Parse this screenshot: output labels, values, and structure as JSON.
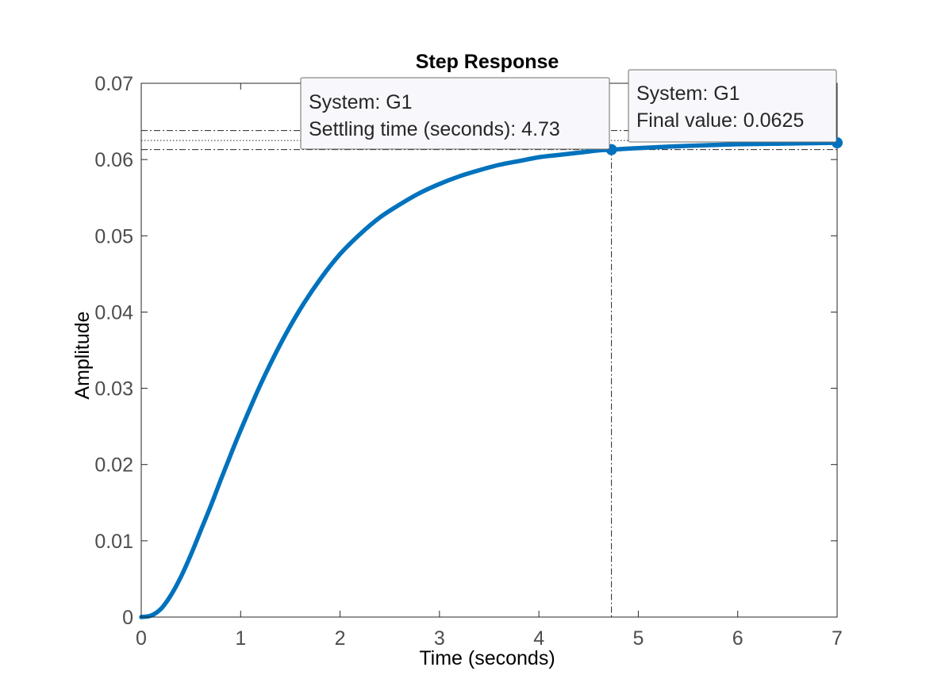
{
  "chart_data": {
    "type": "line",
    "title": "Step Response",
    "xlabel": "Time (seconds)",
    "ylabel": "Amplitude",
    "xlim": [
      0,
      7
    ],
    "ylim": [
      0,
      0.07
    ],
    "xticks": [
      "0",
      "1",
      "2",
      "3",
      "4",
      "5",
      "6",
      "7"
    ],
    "yticks": [
      "0",
      "0.01",
      "0.02",
      "0.03",
      "0.04",
      "0.05",
      "0.06",
      "0.07"
    ],
    "grid": false,
    "series": [
      {
        "name": "G1",
        "color": "#0072bd",
        "x": [
          0,
          0.1,
          0.2,
          0.3,
          0.4,
          0.5,
          0.6,
          0.7,
          0.8,
          0.9,
          1.0,
          1.2,
          1.4,
          1.6,
          1.8,
          2.0,
          2.2,
          2.4,
          2.6,
          2.8,
          3.0,
          3.2,
          3.4,
          3.6,
          3.8,
          4.0,
          4.2,
          4.4,
          4.6,
          4.73,
          5.0,
          5.5,
          6.0,
          6.5,
          7.0
        ],
        "y": [
          0,
          0.0002,
          0.0011,
          0.0029,
          0.0053,
          0.0082,
          0.0114,
          0.0146,
          0.018,
          0.0213,
          0.0245,
          0.0305,
          0.0358,
          0.0404,
          0.0443,
          0.0476,
          0.0502,
          0.0524,
          0.0541,
          0.0556,
          0.0568,
          0.0578,
          0.0586,
          0.0593,
          0.0598,
          0.0603,
          0.0606,
          0.0609,
          0.0612,
          0.0613,
          0.0615,
          0.0618,
          0.062,
          0.0621,
          0.0622
        ]
      }
    ],
    "reference_lines": {
      "final_value": 0.0625,
      "settling_upper": 0.0638,
      "settling_lower": 0.0613,
      "settling_time": 4.73
    },
    "datatips": [
      {
        "name": "settling-time",
        "x": 4.73,
        "y": 0.0613,
        "lines": [
          "System: G1",
          "Settling time (seconds): 4.73"
        ]
      },
      {
        "name": "final-value",
        "x": 7.0,
        "y": 0.0622,
        "lines": [
          "System: G1",
          "Final value: 0.0625"
        ]
      }
    ]
  }
}
